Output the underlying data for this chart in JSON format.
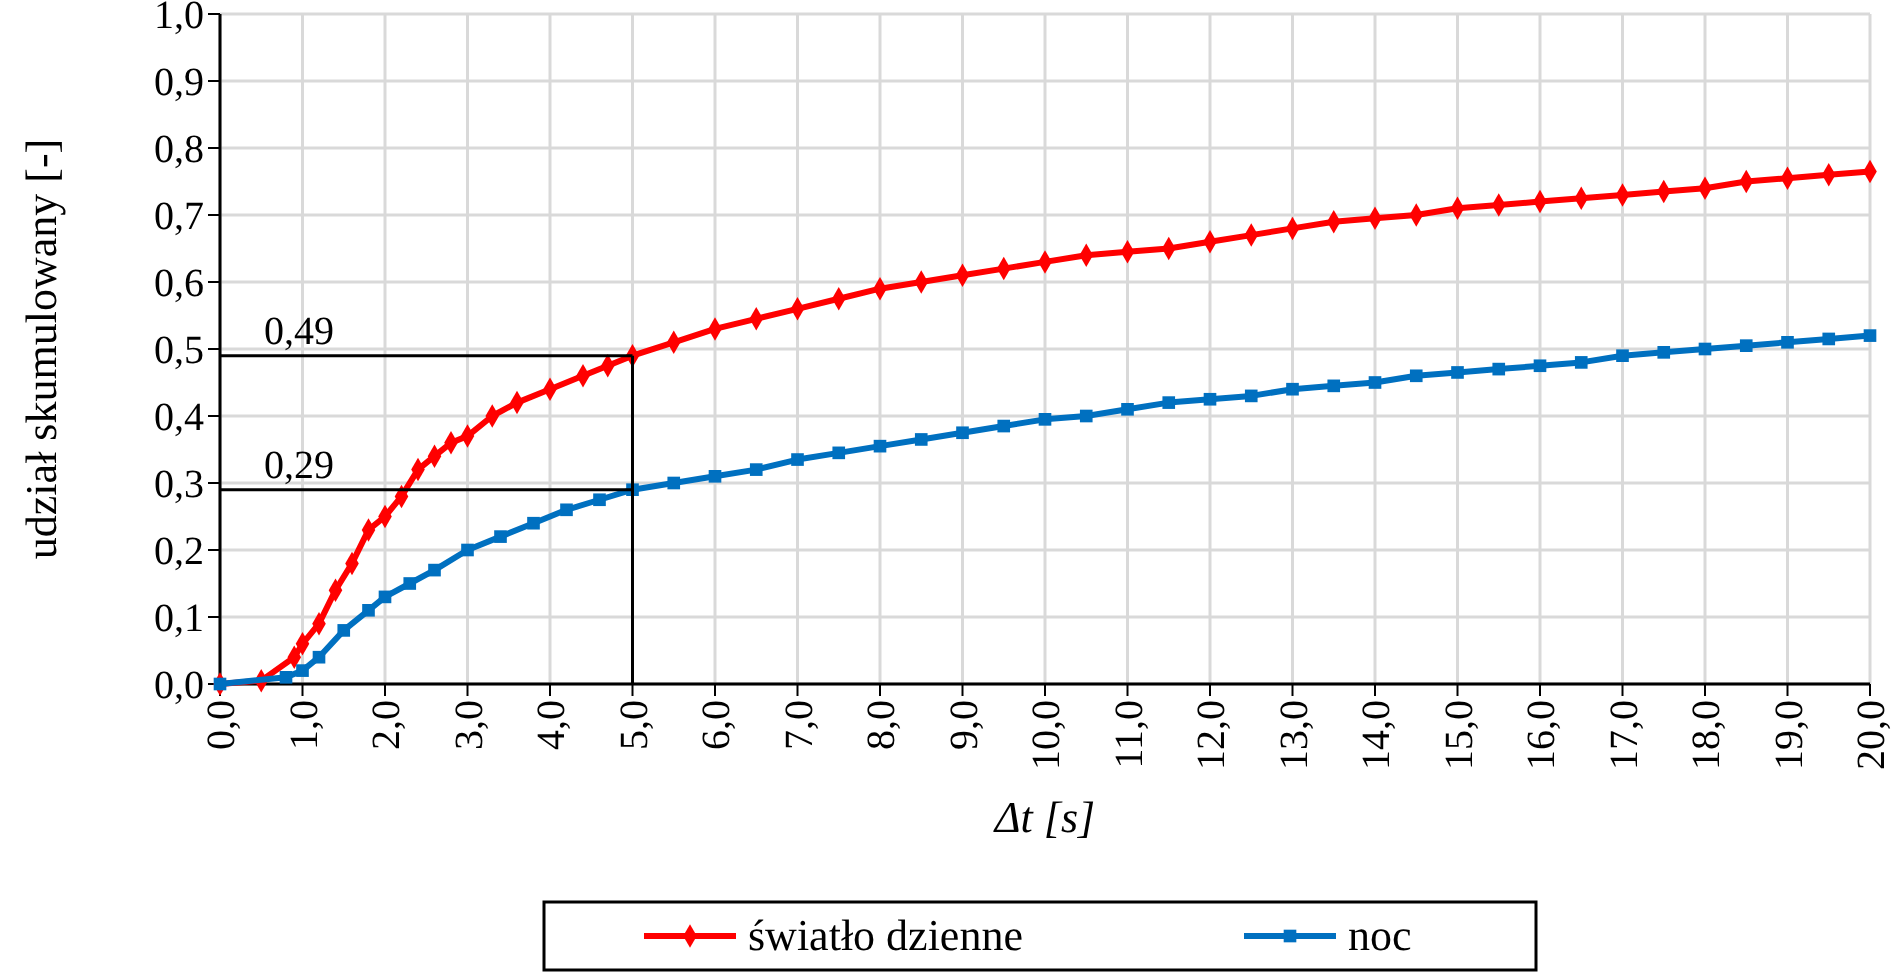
{
  "chart_data": {
    "type": "line",
    "xlabel": "Δt [s]",
    "ylabel": "udział skumulowany [-]",
    "xlim": [
      0,
      20
    ],
    "ylim": [
      0,
      1
    ],
    "xticks": [
      {
        "value": 0,
        "label": "0,0"
      },
      {
        "value": 1,
        "label": "1,0"
      },
      {
        "value": 2,
        "label": "2,0"
      },
      {
        "value": 3,
        "label": "3,0"
      },
      {
        "value": 4,
        "label": "4,0"
      },
      {
        "value": 5,
        "label": "5,0"
      },
      {
        "value": 6,
        "label": "6,0"
      },
      {
        "value": 7,
        "label": "7,0"
      },
      {
        "value": 8,
        "label": "8,0"
      },
      {
        "value": 9,
        "label": "9,0"
      },
      {
        "value": 10,
        "label": "10,0"
      },
      {
        "value": 11,
        "label": "11,0"
      },
      {
        "value": 12,
        "label": "12,0"
      },
      {
        "value": 13,
        "label": "13,0"
      },
      {
        "value": 14,
        "label": "14,0"
      },
      {
        "value": 15,
        "label": "15,0"
      },
      {
        "value": 16,
        "label": "16,0"
      },
      {
        "value": 17,
        "label": "17,0"
      },
      {
        "value": 18,
        "label": "18,0"
      },
      {
        "value": 19,
        "label": "19,0"
      },
      {
        "value": 20,
        "label": "20,0"
      }
    ],
    "yticks": [
      {
        "value": 0,
        "label": "0,0"
      },
      {
        "value": 0.1,
        "label": "0,1"
      },
      {
        "value": 0.2,
        "label": "0,2"
      },
      {
        "value": 0.3,
        "label": "0,3"
      },
      {
        "value": 0.4,
        "label": "0,4"
      },
      {
        "value": 0.5,
        "label": "0,5"
      },
      {
        "value": 0.6,
        "label": "0,6"
      },
      {
        "value": 0.7,
        "label": "0,7"
      },
      {
        "value": 0.8,
        "label": "0,8"
      },
      {
        "value": 0.9,
        "label": "0,9"
      },
      {
        "value": 1,
        "label": "1,0"
      }
    ],
    "grid": true,
    "legend": "bottom",
    "ref_lines": [
      {
        "axis": "y",
        "value": 0.49,
        "label": "0,49",
        "color": "#000000"
      },
      {
        "axis": "y",
        "value": 0.29,
        "label": "0,29",
        "color": "#000000"
      },
      {
        "axis": "x",
        "value": 5,
        "color": "#000000"
      }
    ],
    "series": [
      {
        "name": "światło dzienne",
        "color": "#ff0000",
        "marker": "diamond",
        "x": [
          0,
          0.5,
          0.9,
          1.0,
          1.2,
          1.4,
          1.6,
          1.8,
          2.0,
          2.2,
          2.4,
          2.6,
          2.8,
          3.0,
          3.3,
          3.6,
          4.0,
          4.4,
          4.7,
          5.0,
          5.5,
          6,
          6.5,
          7,
          7.5,
          8,
          8.5,
          9,
          9.5,
          10,
          10.5,
          11,
          11.5,
          12,
          12.5,
          13,
          13.5,
          14,
          14.5,
          15,
          15.5,
          16,
          16.5,
          17,
          17.5,
          18,
          18.5,
          19,
          19.5,
          20
        ],
        "values": [
          0,
          0.005,
          0.04,
          0.06,
          0.09,
          0.14,
          0.18,
          0.23,
          0.25,
          0.28,
          0.32,
          0.34,
          0.36,
          0.37,
          0.4,
          0.42,
          0.44,
          0.46,
          0.475,
          0.49,
          0.51,
          0.53,
          0.545,
          0.56,
          0.575,
          0.59,
          0.6,
          0.61,
          0.62,
          0.63,
          0.64,
          0.645,
          0.65,
          0.66,
          0.67,
          0.68,
          0.69,
          0.695,
          0.7,
          0.71,
          0.715,
          0.72,
          0.725,
          0.73,
          0.735,
          0.74,
          0.75,
          0.755,
          0.76,
          0.765
        ]
      },
      {
        "name": "noc",
        "color": "#0070c0",
        "marker": "square",
        "x": [
          0,
          0.8,
          1.0,
          1.2,
          1.5,
          1.8,
          2.0,
          2.3,
          2.6,
          3.0,
          3.4,
          3.8,
          4.2,
          4.6,
          5.0,
          5.5,
          6,
          6.5,
          7,
          7.5,
          8,
          8.5,
          9,
          9.5,
          10,
          10.5,
          11,
          11.5,
          12,
          12.5,
          13,
          13.5,
          14,
          14.5,
          15,
          15.5,
          16,
          16.5,
          17,
          17.5,
          18,
          18.5,
          19,
          19.5,
          20
        ],
        "values": [
          0,
          0.01,
          0.02,
          0.04,
          0.08,
          0.11,
          0.13,
          0.15,
          0.17,
          0.2,
          0.22,
          0.24,
          0.26,
          0.275,
          0.29,
          0.3,
          0.31,
          0.32,
          0.335,
          0.345,
          0.355,
          0.365,
          0.375,
          0.385,
          0.395,
          0.4,
          0.41,
          0.42,
          0.425,
          0.43,
          0.44,
          0.445,
          0.45,
          0.46,
          0.465,
          0.47,
          0.475,
          0.48,
          0.49,
          0.495,
          0.5,
          0.505,
          0.51,
          0.515,
          0.52
        ]
      }
    ]
  }
}
